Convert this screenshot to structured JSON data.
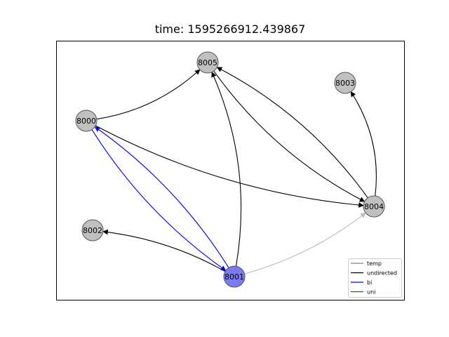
{
  "title": "time: 1595266912.439867",
  "colors": {
    "node_default": "#c0c0c0",
    "node_highlight": "#7b7bf0",
    "edge_temp": "#bbbbbb",
    "edge_undirected": "#000000",
    "edge_bi": "#0000ff",
    "edge_uni": "#008000",
    "legend_temp": "#808080",
    "legend_undirected": "#000000",
    "legend_bi": "#0000ff",
    "legend_uni": "#008000"
  },
  "nodes": [
    {
      "id": "8000",
      "label": "8000",
      "highlight": false
    },
    {
      "id": "8001",
      "label": "8001",
      "highlight": true
    },
    {
      "id": "8002",
      "label": "8002",
      "highlight": false
    },
    {
      "id": "8003",
      "label": "8003",
      "highlight": false
    },
    {
      "id": "8004",
      "label": "8004",
      "highlight": false
    },
    {
      "id": "8005",
      "label": "8005",
      "highlight": false
    }
  ],
  "edges": [
    {
      "from": "8000",
      "to": "8005",
      "type": "undirected"
    },
    {
      "from": "8000",
      "to": "8004",
      "type": "undirected"
    },
    {
      "from": "8000",
      "to": "8001",
      "type": "bi"
    },
    {
      "from": "8001",
      "to": "8000",
      "type": "bi"
    },
    {
      "from": "8001",
      "to": "8002",
      "type": "undirected"
    },
    {
      "from": "8001",
      "to": "8005",
      "type": "undirected"
    },
    {
      "from": "8001",
      "to": "8004",
      "type": "temp"
    },
    {
      "from": "8005",
      "to": "8004",
      "type": "undirected"
    },
    {
      "from": "8004",
      "to": "8005",
      "type": "undirected"
    },
    {
      "from": "8004",
      "to": "8003",
      "type": "undirected"
    }
  ],
  "legend": [
    {
      "label": "temp",
      "color_key": "legend_temp"
    },
    {
      "label": "undirected",
      "color_key": "legend_undirected"
    },
    {
      "label": "bi",
      "color_key": "legend_bi"
    },
    {
      "label": "uni",
      "color_key": "legend_uni"
    }
  ]
}
